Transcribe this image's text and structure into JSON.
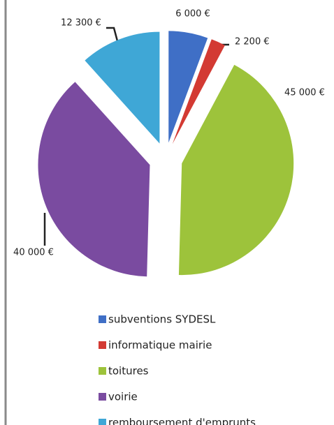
{
  "chart_data": {
    "type": "pie",
    "categories": [
      "subventions SYDESL",
      "informatique mairie",
      "toitures",
      "voirie",
      "remboursement d'emprunts"
    ],
    "values": [
      6000,
      2200,
      45000,
      40000,
      12300
    ],
    "value_labels": [
      "6 000 €",
      "2 200 €",
      "45 000 €",
      "40 000 €",
      "12 300 €"
    ],
    "colors": [
      "#3f6fc6",
      "#d33a33",
      "#9dc33b",
      "#7a4ba0",
      "#3fa7d6"
    ],
    "exploded": true,
    "legend": "bottom"
  }
}
